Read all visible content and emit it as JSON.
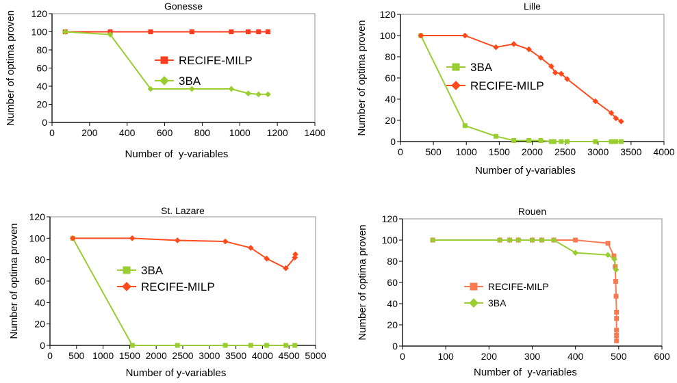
{
  "colors": {
    "red": "#ff3b1f",
    "orange_red": "#ff4a1c",
    "salmon": "#f97950",
    "green": "#9acd32",
    "frame": "#b3b3b3"
  },
  "chart_data": [
    {
      "type": "line",
      "title": "Gonesse",
      "xlabel": "Number of  y-variables",
      "ylabel": "Number of optima proven",
      "xlim": [
        0,
        1400
      ],
      "ylim": [
        0,
        120
      ],
      "xticks": [
        0,
        200,
        400,
        600,
        800,
        1000,
        1200,
        1400
      ],
      "yticks": [
        0,
        20,
        40,
        60,
        80,
        100,
        120
      ],
      "legend_position": "center-right",
      "legend": [
        "RECIFE-MILP",
        "3BA"
      ],
      "series": [
        {
          "name": "RECIFE-MILP",
          "color": "#ff3b1f",
          "marker": "square",
          "x": [
            70,
            310,
            525,
            745,
            955,
            1045,
            1100,
            1150
          ],
          "y": [
            100,
            100,
            100,
            100,
            100,
            100,
            100,
            100
          ]
        },
        {
          "name": "3BA",
          "color": "#9acd32",
          "marker": "diamond",
          "x": [
            70,
            310,
            525,
            745,
            955,
            1045,
            1100,
            1150
          ],
          "y": [
            100,
            97,
            37,
            37,
            37,
            32,
            31,
            31
          ]
        }
      ]
    },
    {
      "type": "line",
      "title": "Lille",
      "xlabel": "Number of y-variables",
      "ylabel": "Number of optima proven",
      "xlim": [
        0,
        4000
      ],
      "ylim": [
        0,
        120
      ],
      "xticks": [
        0,
        500,
        1000,
        1500,
        2000,
        2500,
        3000,
        3500,
        4000
      ],
      "yticks": [
        0,
        20,
        40,
        60,
        80,
        100,
        120
      ],
      "legend_position": "center-left",
      "legend": [
        "3BA",
        "RECIFE-MILP"
      ],
      "series": [
        {
          "name": "3BA",
          "color": "#9acd32",
          "marker": "square",
          "x": [
            310,
            980,
            1450,
            1720,
            1950,
            2130,
            2290,
            2330,
            2440,
            2530,
            2960,
            3200,
            3270,
            3350
          ],
          "y": [
            100,
            15,
            5,
            1,
            1,
            1,
            0,
            0,
            0,
            0,
            0,
            0,
            0,
            0
          ]
        },
        {
          "name": "RECIFE-MILP",
          "color": "#ff4a1c",
          "marker": "diamond",
          "x": [
            310,
            980,
            1450,
            1720,
            1950,
            2130,
            2290,
            2350,
            2440,
            2530,
            2960,
            3200,
            3270,
            3350
          ],
          "y": [
            100,
            100,
            89,
            92,
            87,
            79,
            71,
            65,
            64,
            59,
            38,
            27,
            22,
            19
          ]
        }
      ]
    },
    {
      "type": "line",
      "title": "St. Lazare",
      "xlabel": "Number of y-variables",
      "ylabel": "Number of optima proven",
      "xlim": [
        0,
        5000
      ],
      "ylim": [
        0,
        120
      ],
      "xticks": [
        0,
        500,
        1000,
        1500,
        2000,
        2500,
        3000,
        3500,
        4000,
        4500,
        5000
      ],
      "yticks": [
        0,
        20,
        40,
        60,
        80,
        100,
        120
      ],
      "legend_position": "center",
      "legend": [
        "3BA",
        "RECIFE-MILP"
      ],
      "series": [
        {
          "name": "3BA",
          "color": "#9acd32",
          "marker": "square",
          "x": [
            430,
            1550,
            2400,
            3300,
            3780,
            4080,
            4440,
            4610
          ],
          "y": [
            100,
            0,
            0,
            0,
            0,
            0,
            0,
            0
          ]
        },
        {
          "name": "RECIFE-MILP",
          "color": "#ff4a1c",
          "marker": "diamond",
          "x": [
            430,
            1550,
            2400,
            3300,
            3780,
            4080,
            4440,
            4610,
            4620
          ],
          "y": [
            100,
            100,
            98,
            97,
            91,
            81,
            72,
            82,
            85
          ]
        }
      ]
    },
    {
      "type": "line",
      "title": "Rouen",
      "xlabel": "Number of  y-variables",
      "ylabel": "Number of optima proven",
      "xlim": [
        0,
        600
      ],
      "ylim": [
        0,
        120
      ],
      "xticks": [
        0,
        100,
        200,
        300,
        400,
        500,
        600
      ],
      "yticks": [
        0,
        20,
        40,
        60,
        80,
        100,
        120
      ],
      "legend_position": "center",
      "legend": [
        "RECIFE-MILP",
        "3BA"
      ],
      "series": [
        {
          "name": "RECIFE-MILP",
          "color": "#f97950",
          "marker": "square",
          "x": [
            70,
            225,
            248,
            268,
            300,
            322,
            350,
            400,
            475,
            489,
            492,
            493,
            494,
            495,
            495,
            495,
            495,
            495
          ],
          "y": [
            100,
            100,
            100,
            100,
            100,
            100,
            100,
            100,
            97,
            85,
            75,
            61,
            47,
            32,
            26,
            15,
            10,
            5
          ]
        },
        {
          "name": "3BA",
          "color": "#9acd32",
          "marker": "diamond",
          "x": [
            70,
            225,
            248,
            268,
            300,
            322,
            350,
            400,
            475,
            490,
            494
          ],
          "y": [
            100,
            100,
            100,
            100,
            100,
            100,
            100,
            88,
            86,
            82,
            72
          ]
        }
      ]
    }
  ]
}
